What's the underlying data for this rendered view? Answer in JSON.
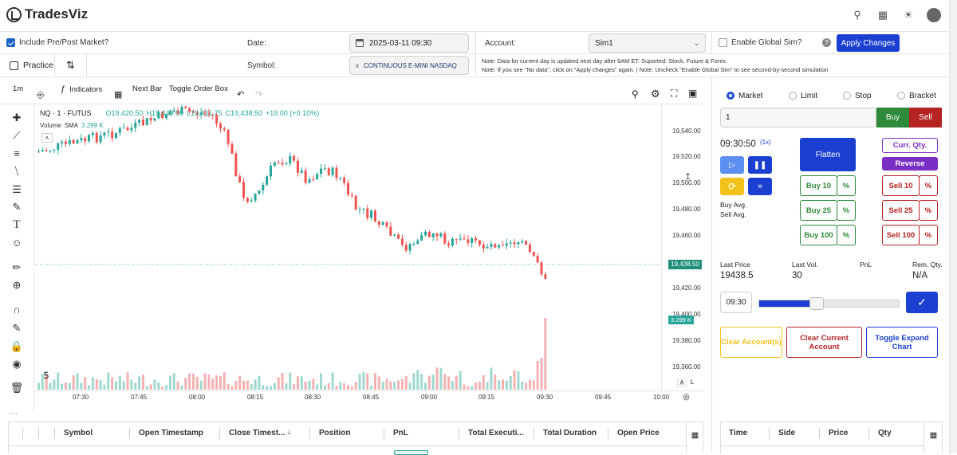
{
  "app": {
    "name": "TradesViz"
  },
  "controls": {
    "include_prepost": "Include Pre/Post Market?",
    "date_label": "Date:",
    "date_value": "2025-03-11 09:30",
    "account_label": "Account:",
    "account_value": "Sim1",
    "global_sim": "Enable Global Sim?",
    "apply": "Apply Changes",
    "practice": "Practice",
    "symbol_label": "Symbol:",
    "symbol_value": "CONTINUOUS E-MINI NASDAQ",
    "symbol_remove": "x",
    "note1": "Note: Data for current day is updated next day after 6AM ET. Suported: Stock, Future & Forex.",
    "note2": "Note: If you see \"No data\", click on \"Apply changes\" again. | Note: Uncheck \"Enable Global Sim\" to see second-by-second simulation"
  },
  "toolbar": {
    "interval": "1m",
    "indicators": "Indicators",
    "next_bar": "Next Bar",
    "toggle_order_box": "Toggle Order Box"
  },
  "chart_header": {
    "symbol": "NQ · 1 · FUTUS",
    "o": "O19,420.50",
    "h": "H19,449.00",
    "l": "L19,411.75",
    "c": "C19,438.50",
    "chg": "+19.00 (+0.10%)",
    "vol_label": "Volume",
    "sma": "SMA",
    "vol_value": "3.299 K"
  },
  "chart_data": {
    "type": "candlestick",
    "ytick_labels": [
      "19,540.00",
      "19,520.00",
      "19,500.00",
      "19,480.00",
      "19,460.00",
      "19,420.00",
      "19,400.00",
      "19,380.00",
      "19,360.00"
    ],
    "xtick_labels": [
      "07:30",
      "07:45",
      "08:00",
      "08:15",
      "08:30",
      "08:45",
      "09:00",
      "09:15",
      "09:30",
      "09:45",
      "10:00"
    ],
    "last_price_label": "19,438.50",
    "last_volume_label": "3.299 K",
    "auto_label": "A",
    "log_label": "L"
  },
  "order": {
    "types": [
      "Market",
      "Limit",
      "Stop",
      "Bracket"
    ],
    "qty": "1",
    "buy": "Buy",
    "sell": "Sell",
    "time": "09:30:50",
    "speed": "(1x)",
    "flatten": "Flatten",
    "curr_qty": "Curr. Qty.",
    "reverse": "Reverse",
    "buy10": "Buy 10",
    "buy25": "Buy 25",
    "buy100": "Buy 100",
    "sell10": "Sell 10",
    "sell25": "Sell 25",
    "sell100": "Sell 100",
    "pct": "%",
    "buy_avg": "Buy Avg.",
    "sell_avg": "Sell Avg.",
    "last_price_label": "Last Price",
    "last_price": "19438.5",
    "last_vol_label": "Last Vol.",
    "last_vol": "30",
    "pnl_label": "PnL",
    "rem_qty_label": "Rem. Qty.",
    "rem_qty": "N/A",
    "slider_time": "09:30",
    "slider_value": 0.4,
    "clear_accounts": "Clear Account(s)",
    "clear_current": "Clear Current Account",
    "toggle_expand": "Toggle Expand Chart"
  },
  "table": {
    "headers": [
      "Symbol",
      "Open Timestamp",
      "Close Timest...",
      "Position",
      "PnL",
      "Total Executi...",
      "Total Duration",
      "Open Price"
    ]
  },
  "table2": {
    "headers": [
      "Time",
      "Side",
      "Price",
      "Qty"
    ]
  },
  "colors": {
    "up": "#26a69a",
    "down": "#ef5350",
    "accent": "#1a3fd1"
  }
}
